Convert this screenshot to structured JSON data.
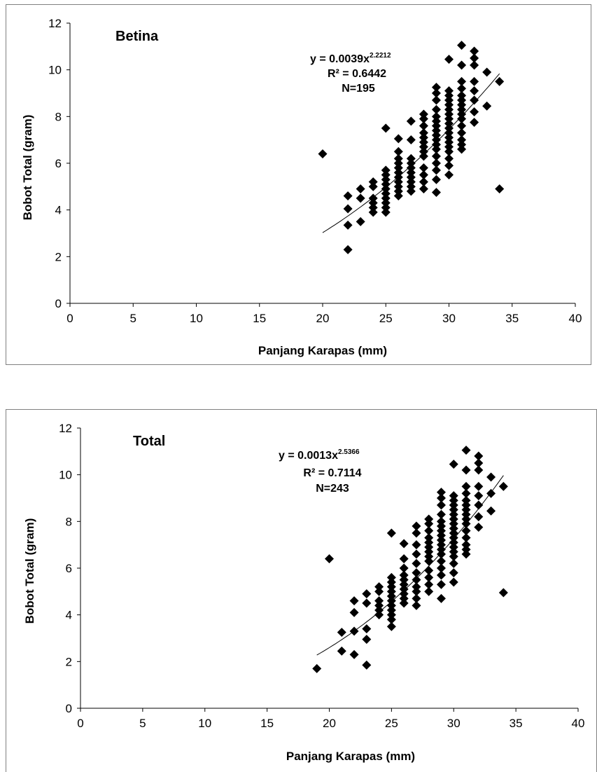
{
  "chart_data": [
    {
      "type": "scatter",
      "panel_title": "Betina",
      "xlabel": "Panjang Karapas (mm)",
      "ylabel": "Bobot Total (gram)",
      "xlim": [
        0,
        40
      ],
      "ylim": [
        0,
        12
      ],
      "x_ticks": [
        0,
        5,
        10,
        15,
        20,
        25,
        30,
        35,
        40
      ],
      "y_ticks": [
        0,
        2,
        4,
        6,
        8,
        10,
        12
      ],
      "grid": false,
      "equation": {
        "prefix": "y = 0.0039x",
        "exponent": "2.2212",
        "r2": "R² = 0.6442",
        "n": "N=195"
      },
      "trendline": {
        "a": 0.0039,
        "b": 2.2212,
        "x_range": [
          20,
          34
        ]
      },
      "marker": "diamond",
      "points": [
        [
          20,
          6.4
        ],
        [
          22,
          2.3
        ],
        [
          22,
          3.35
        ],
        [
          22,
          4.05
        ],
        [
          22,
          4.6
        ],
        [
          23,
          3.5
        ],
        [
          23,
          4.5
        ],
        [
          23,
          4.9
        ],
        [
          24,
          3.9
        ],
        [
          24,
          4.1
        ],
        [
          24,
          4.3
        ],
        [
          24,
          4.5
        ],
        [
          24,
          5.0
        ],
        [
          24,
          5.2
        ],
        [
          25,
          3.9
        ],
        [
          25,
          4.1
        ],
        [
          25,
          4.3
        ],
        [
          25,
          4.5
        ],
        [
          25,
          4.7
        ],
        [
          25,
          4.9
        ],
        [
          25,
          5.1
        ],
        [
          25,
          5.3
        ],
        [
          25,
          5.5
        ],
        [
          25,
          5.7
        ],
        [
          25,
          7.5
        ],
        [
          26,
          4.6
        ],
        [
          26,
          4.8
        ],
        [
          26,
          5.0
        ],
        [
          26,
          5.2
        ],
        [
          26,
          5.4
        ],
        [
          26,
          5.6
        ],
        [
          26,
          5.8
        ],
        [
          26,
          6.0
        ],
        [
          26,
          6.2
        ],
        [
          26,
          6.5
        ],
        [
          26,
          7.05
        ],
        [
          27,
          4.8
        ],
        [
          27,
          5.0
        ],
        [
          27,
          5.2
        ],
        [
          27,
          5.4
        ],
        [
          27,
          5.6
        ],
        [
          27,
          5.8
        ],
        [
          27,
          6.0
        ],
        [
          27,
          6.2
        ],
        [
          27,
          7.0
        ],
        [
          27,
          7.8
        ],
        [
          28,
          4.9
        ],
        [
          28,
          5.2
        ],
        [
          28,
          5.5
        ],
        [
          28,
          5.8
        ],
        [
          28,
          6.3
        ],
        [
          28,
          6.5
        ],
        [
          28,
          6.7
        ],
        [
          28,
          6.9
        ],
        [
          28,
          7.1
        ],
        [
          28,
          7.3
        ],
        [
          28,
          7.6
        ],
        [
          28,
          7.9
        ],
        [
          28,
          8.1
        ],
        [
          29,
          4.75
        ],
        [
          29,
          5.3
        ],
        [
          29,
          5.7
        ],
        [
          29,
          6.0
        ],
        [
          29,
          6.3
        ],
        [
          29,
          6.6
        ],
        [
          29,
          6.8
        ],
        [
          29,
          7.0
        ],
        [
          29,
          7.2
        ],
        [
          29,
          7.4
        ],
        [
          29,
          7.6
        ],
        [
          29,
          7.8
        ],
        [
          29,
          8.0
        ],
        [
          29,
          8.3
        ],
        [
          29,
          8.7
        ],
        [
          29,
          9.0
        ],
        [
          29,
          9.25
        ],
        [
          30,
          5.5
        ],
        [
          30,
          5.9
        ],
        [
          30,
          6.2
        ],
        [
          30,
          6.5
        ],
        [
          30,
          6.7
        ],
        [
          30,
          6.9
        ],
        [
          30,
          7.1
        ],
        [
          30,
          7.3
        ],
        [
          30,
          7.5
        ],
        [
          30,
          7.7
        ],
        [
          30,
          7.9
        ],
        [
          30,
          8.1
        ],
        [
          30,
          8.3
        ],
        [
          30,
          8.5
        ],
        [
          30,
          8.7
        ],
        [
          30,
          8.9
        ],
        [
          30,
          9.1
        ],
        [
          30,
          10.45
        ],
        [
          31,
          6.6
        ],
        [
          31,
          6.8
        ],
        [
          31,
          7.0
        ],
        [
          31,
          7.3
        ],
        [
          31,
          7.6
        ],
        [
          31,
          7.9
        ],
        [
          31,
          8.1
        ],
        [
          31,
          8.3
        ],
        [
          31,
          8.5
        ],
        [
          31,
          8.7
        ],
        [
          31,
          8.9
        ],
        [
          31,
          9.2
        ],
        [
          31,
          9.5
        ],
        [
          31,
          10.2
        ],
        [
          31,
          11.05
        ],
        [
          32,
          7.75
        ],
        [
          32,
          8.2
        ],
        [
          32,
          8.7
        ],
        [
          32,
          9.1
        ],
        [
          32,
          9.5
        ],
        [
          32,
          10.2
        ],
        [
          32,
          10.5
        ],
        [
          32,
          10.8
        ],
        [
          33,
          8.45
        ],
        [
          33,
          9.9
        ],
        [
          34,
          4.9
        ],
        [
          34,
          9.5
        ]
      ]
    },
    {
      "type": "scatter",
      "panel_title": "Total",
      "xlabel": "Panjang Karapas (mm)",
      "ylabel": "Bobot Total (gram)",
      "xlim": [
        0,
        40
      ],
      "ylim": [
        0,
        12
      ],
      "x_ticks": [
        0,
        5,
        10,
        15,
        20,
        25,
        30,
        35,
        40
      ],
      "y_ticks": [
        0,
        2,
        4,
        6,
        8,
        10,
        12
      ],
      "grid": false,
      "equation": {
        "prefix": "y = 0.0013x",
        "exponent": "2.5366",
        "r2": "R² = 0.7114",
        "n": "N=243"
      },
      "trendline": {
        "a": 0.0013,
        "b": 2.5366,
        "x_range": [
          19,
          34
        ]
      },
      "marker": "diamond",
      "points": [
        [
          19,
          1.7
        ],
        [
          20,
          6.4
        ],
        [
          21,
          2.45
        ],
        [
          21,
          3.25
        ],
        [
          22,
          2.3
        ],
        [
          22,
          3.3
        ],
        [
          22,
          4.1
        ],
        [
          22,
          4.6
        ],
        [
          23,
          1.85
        ],
        [
          23,
          2.95
        ],
        [
          23,
          3.4
        ],
        [
          23,
          4.5
        ],
        [
          23,
          4.9
        ],
        [
          24,
          4.0
        ],
        [
          24,
          4.2
        ],
        [
          24,
          4.4
        ],
        [
          24,
          4.6
        ],
        [
          24,
          5.0
        ],
        [
          24,
          5.2
        ],
        [
          25,
          3.5
        ],
        [
          25,
          3.8
        ],
        [
          25,
          4.0
        ],
        [
          25,
          4.2
        ],
        [
          25,
          4.4
        ],
        [
          25,
          4.6
        ],
        [
          25,
          4.8
        ],
        [
          25,
          5.0
        ],
        [
          25,
          5.2
        ],
        [
          25,
          5.4
        ],
        [
          25,
          5.6
        ],
        [
          25,
          7.5
        ],
        [
          26,
          4.5
        ],
        [
          26,
          4.7
        ],
        [
          26,
          4.9
        ],
        [
          26,
          5.1
        ],
        [
          26,
          5.3
        ],
        [
          26,
          5.5
        ],
        [
          26,
          5.7
        ],
        [
          26,
          6.0
        ],
        [
          26,
          6.4
        ],
        [
          26,
          7.05
        ],
        [
          27,
          4.4
        ],
        [
          27,
          4.7
        ],
        [
          27,
          5.0
        ],
        [
          27,
          5.2
        ],
        [
          27,
          5.5
        ],
        [
          27,
          5.8
        ],
        [
          27,
          6.2
        ],
        [
          27,
          6.6
        ],
        [
          27,
          7.0
        ],
        [
          27,
          7.5
        ],
        [
          27,
          7.8
        ],
        [
          28,
          5.0
        ],
        [
          28,
          5.3
        ],
        [
          28,
          5.6
        ],
        [
          28,
          5.9
        ],
        [
          28,
          6.3
        ],
        [
          28,
          6.5
        ],
        [
          28,
          6.7
        ],
        [
          28,
          6.9
        ],
        [
          28,
          7.1
        ],
        [
          28,
          7.3
        ],
        [
          28,
          7.6
        ],
        [
          28,
          7.9
        ],
        [
          28,
          8.1
        ],
        [
          29,
          4.7
        ],
        [
          29,
          5.3
        ],
        [
          29,
          5.7
        ],
        [
          29,
          6.0
        ],
        [
          29,
          6.3
        ],
        [
          29,
          6.6
        ],
        [
          29,
          6.8
        ],
        [
          29,
          7.0
        ],
        [
          29,
          7.2
        ],
        [
          29,
          7.4
        ],
        [
          29,
          7.6
        ],
        [
          29,
          7.8
        ],
        [
          29,
          8.0
        ],
        [
          29,
          8.3
        ],
        [
          29,
          8.7
        ],
        [
          29,
          9.0
        ],
        [
          29,
          9.25
        ],
        [
          30,
          5.4
        ],
        [
          30,
          5.8
        ],
        [
          30,
          6.2
        ],
        [
          30,
          6.5
        ],
        [
          30,
          6.7
        ],
        [
          30,
          6.9
        ],
        [
          30,
          7.1
        ],
        [
          30,
          7.3
        ],
        [
          30,
          7.5
        ],
        [
          30,
          7.7
        ],
        [
          30,
          7.9
        ],
        [
          30,
          8.1
        ],
        [
          30,
          8.3
        ],
        [
          30,
          8.5
        ],
        [
          30,
          8.7
        ],
        [
          30,
          8.9
        ],
        [
          30,
          9.1
        ],
        [
          30,
          10.45
        ],
        [
          31,
          6.6
        ],
        [
          31,
          6.8
        ],
        [
          31,
          7.0
        ],
        [
          31,
          7.3
        ],
        [
          31,
          7.6
        ],
        [
          31,
          7.9
        ],
        [
          31,
          8.1
        ],
        [
          31,
          8.3
        ],
        [
          31,
          8.5
        ],
        [
          31,
          8.7
        ],
        [
          31,
          8.9
        ],
        [
          31,
          9.2
        ],
        [
          31,
          9.5
        ],
        [
          31,
          10.2
        ],
        [
          31,
          11.05
        ],
        [
          32,
          7.75
        ],
        [
          32,
          8.2
        ],
        [
          32,
          8.7
        ],
        [
          32,
          9.1
        ],
        [
          32,
          9.5
        ],
        [
          32,
          10.2
        ],
        [
          32,
          10.5
        ],
        [
          32,
          10.8
        ],
        [
          33,
          8.45
        ],
        [
          33,
          9.2
        ],
        [
          33,
          9.9
        ],
        [
          34,
          4.95
        ],
        [
          34,
          9.5
        ]
      ]
    }
  ]
}
